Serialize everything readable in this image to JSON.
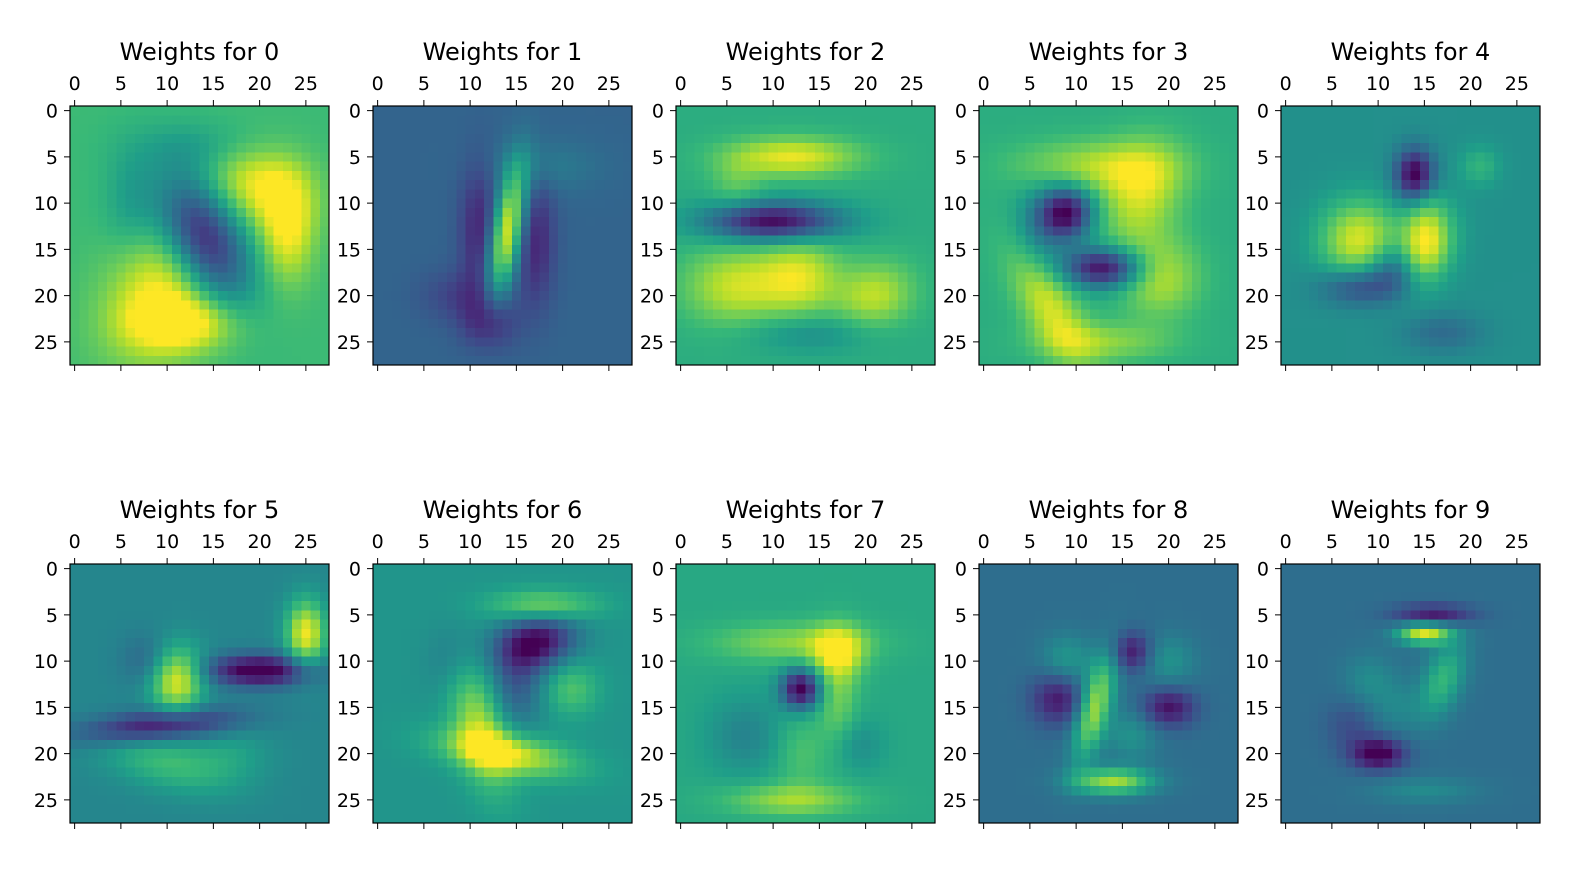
{
  "chart_data": [
    {
      "type": "heatmap",
      "title": "Weights for 0",
      "xticks": [
        "0",
        "5",
        "10",
        "15",
        "20",
        "25"
      ],
      "yticks": [
        "0",
        "5",
        "10",
        "15",
        "20",
        "25"
      ],
      "xlim": [
        0,
        27
      ],
      "ylim": [
        0,
        27
      ],
      "colormap": "viridis",
      "background_level": 0.68,
      "features": [
        {
          "x": 14,
          "y": 14,
          "rx": 3,
          "ry": 5,
          "rot": -25,
          "w": -0.7
        },
        {
          "x": 10,
          "y": 19,
          "rx": 4,
          "ry": 6,
          "rot": 30,
          "w": 0.35
        },
        {
          "x": 20,
          "y": 8,
          "rx": 4,
          "ry": 3,
          "rot": 20,
          "w": 0.3
        },
        {
          "x": 23,
          "y": 13,
          "rx": 2,
          "ry": 4,
          "rot": 0,
          "w": 0.3
        },
        {
          "x": 12,
          "y": 23,
          "rx": 4,
          "ry": 2,
          "rot": 0,
          "w": 0.3
        },
        {
          "x": 14,
          "y": 4,
          "rx": 5,
          "ry": 2,
          "rot": 0,
          "w": -0.12
        },
        {
          "x": 6,
          "y": 10,
          "rx": 2,
          "ry": 4,
          "rot": 0,
          "w": -0.12
        }
      ]
    },
    {
      "type": "heatmap",
      "title": "Weights for 1",
      "xticks": [
        "0",
        "5",
        "10",
        "15",
        "20",
        "25"
      ],
      "yticks": [
        "0",
        "5",
        "10",
        "15",
        "20",
        "25"
      ],
      "xlim": [
        0,
        27
      ],
      "ylim": [
        0,
        27
      ],
      "colormap": "viridis",
      "background_level": 0.32,
      "features": [
        {
          "x": 14,
          "y": 13,
          "rx": 1.2,
          "ry": 5,
          "rot": 10,
          "w": 0.65
        },
        {
          "x": 11,
          "y": 13,
          "rx": 1.5,
          "ry": 5,
          "rot": 0,
          "w": -0.22
        },
        {
          "x": 17,
          "y": 14,
          "rx": 1.5,
          "ry": 5,
          "rot": 0,
          "w": -0.22
        },
        {
          "x": 12,
          "y": 23,
          "rx": 2,
          "ry": 2,
          "rot": 0,
          "w": -0.2
        },
        {
          "x": 9,
          "y": 20,
          "rx": 3,
          "ry": 2,
          "rot": 0,
          "w": -0.12
        },
        {
          "x": 18,
          "y": 6,
          "rx": 4,
          "ry": 2,
          "rot": 0,
          "w": 0.1
        }
      ]
    },
    {
      "type": "heatmap",
      "title": "Weights for 2",
      "xticks": [
        "0",
        "5",
        "10",
        "15",
        "20",
        "25"
      ],
      "yticks": [
        "0",
        "5",
        "10",
        "15",
        "20",
        "25"
      ],
      "xlim": [
        0,
        27
      ],
      "ylim": [
        0,
        27
      ],
      "colormap": "viridis",
      "background_level": 0.62,
      "features": [
        {
          "x": 12,
          "y": 5,
          "rx": 5,
          "ry": 1.5,
          "rot": 0,
          "w": 0.35
        },
        {
          "x": 10,
          "y": 12,
          "rx": 5,
          "ry": 1.5,
          "rot": 0,
          "w": -0.62
        },
        {
          "x": 6,
          "y": 19,
          "rx": 4,
          "ry": 3,
          "rot": 0,
          "w": 0.3
        },
        {
          "x": 13,
          "y": 18,
          "rx": 3,
          "ry": 3,
          "rot": 0,
          "w": 0.3
        },
        {
          "x": 21,
          "y": 20,
          "rx": 3,
          "ry": 2.5,
          "rot": -20,
          "w": 0.28
        },
        {
          "x": 14,
          "y": 24,
          "rx": 5,
          "ry": 1.5,
          "rot": 0,
          "w": -0.15
        },
        {
          "x": 6,
          "y": 8,
          "rx": 2,
          "ry": 2,
          "rot": 0,
          "w": 0.12
        }
      ]
    },
    {
      "type": "heatmap",
      "title": "Weights for 3",
      "xticks": [
        "0",
        "5",
        "10",
        "15",
        "20",
        "25"
      ],
      "yticks": [
        "0",
        "5",
        "10",
        "15",
        "20",
        "25"
      ],
      "xlim": [
        0,
        27
      ],
      "ylim": [
        0,
        27
      ],
      "colormap": "viridis",
      "background_level": 0.62,
      "features": [
        {
          "x": 12,
          "y": 6,
          "rx": 6,
          "ry": 2,
          "rot": 0,
          "w": 0.25
        },
        {
          "x": 17,
          "y": 9,
          "rx": 3,
          "ry": 4,
          "rot": 20,
          "w": 0.3
        },
        {
          "x": 9,
          "y": 11,
          "rx": 2,
          "ry": 2,
          "rot": 0,
          "w": -0.6
        },
        {
          "x": 13,
          "y": 17,
          "rx": 3,
          "ry": 1.5,
          "rot": 0,
          "w": -0.6
        },
        {
          "x": 7,
          "y": 21,
          "rx": 2,
          "ry": 5,
          "rot": -30,
          "w": 0.32
        },
        {
          "x": 19,
          "y": 18,
          "rx": 3,
          "ry": 3,
          "rot": 0,
          "w": 0.28
        },
        {
          "x": 13,
          "y": 25,
          "rx": 5,
          "ry": 1.5,
          "rot": 0,
          "w": 0.2
        },
        {
          "x": 6,
          "y": 13,
          "rx": 2,
          "ry": 3,
          "rot": 0,
          "w": -0.18
        }
      ]
    },
    {
      "type": "heatmap",
      "title": "Weights for 4",
      "xticks": [
        "0",
        "5",
        "10",
        "15",
        "20",
        "25"
      ],
      "yticks": [
        "0",
        "5",
        "10",
        "15",
        "20",
        "25"
      ],
      "xlim": [
        0,
        27
      ],
      "ylim": [
        0,
        27
      ],
      "colormap": "viridis",
      "background_level": 0.5,
      "features": [
        {
          "x": 14,
          "y": 7,
          "rx": 1.5,
          "ry": 2,
          "rot": 0,
          "w": -0.55
        },
        {
          "x": 8,
          "y": 14,
          "rx": 3,
          "ry": 3,
          "rot": 0,
          "w": 0.45
        },
        {
          "x": 15,
          "y": 15,
          "rx": 2,
          "ry": 3,
          "rot": 20,
          "w": 0.45
        },
        {
          "x": 12,
          "y": 17,
          "rx": 2,
          "ry": 2,
          "rot": 0,
          "w": -0.3
        },
        {
          "x": 8,
          "y": 19,
          "rx": 3,
          "ry": 1.5,
          "rot": 0,
          "w": -0.3
        },
        {
          "x": 15,
          "y": 11,
          "rx": 1.5,
          "ry": 3,
          "rot": 0,
          "w": 0.15
        },
        {
          "x": 21,
          "y": 6,
          "rx": 1.5,
          "ry": 1.5,
          "rot": 0,
          "w": 0.15
        },
        {
          "x": 17,
          "y": 24,
          "rx": 3,
          "ry": 1.5,
          "rot": 0,
          "w": -0.15
        }
      ]
    },
    {
      "type": "heatmap",
      "title": "Weights for 5",
      "xticks": [
        "0",
        "5",
        "10",
        "15",
        "20",
        "25"
      ],
      "yticks": [
        "0",
        "5",
        "10",
        "15",
        "20",
        "25"
      ],
      "xlim": [
        0,
        27
      ],
      "ylim": [
        0,
        27
      ],
      "colormap": "viridis",
      "background_level": 0.46,
      "features": [
        {
          "x": 11,
          "y": 12,
          "rx": 2,
          "ry": 2.5,
          "rot": 0,
          "w": 0.52
        },
        {
          "x": 25,
          "y": 7,
          "rx": 1.5,
          "ry": 2.5,
          "rot": 0,
          "w": 0.52
        },
        {
          "x": 20,
          "y": 11,
          "rx": 4,
          "ry": 1.2,
          "rot": 0,
          "w": -0.52
        },
        {
          "x": 9,
          "y": 17,
          "rx": 6,
          "ry": 1.2,
          "rot": -5,
          "w": -0.42
        },
        {
          "x": 10,
          "y": 21,
          "rx": 5,
          "ry": 2,
          "rot": 15,
          "w": 0.22
        },
        {
          "x": 8,
          "y": 10,
          "rx": 2,
          "ry": 2,
          "rot": 0,
          "w": -0.15
        },
        {
          "x": 17,
          "y": 20,
          "rx": 3,
          "ry": 2,
          "rot": 0,
          "w": 0.1
        }
      ]
    },
    {
      "type": "heatmap",
      "title": "Weights for 6",
      "xticks": [
        "0",
        "5",
        "10",
        "15",
        "20",
        "25"
      ],
      "yticks": [
        "0",
        "5",
        "10",
        "15",
        "20",
        "25"
      ],
      "xlim": [
        0,
        27
      ],
      "ylim": [
        0,
        27
      ],
      "colormap": "viridis",
      "background_level": 0.52,
      "features": [
        {
          "x": 18,
          "y": 4,
          "rx": 4,
          "ry": 1.2,
          "rot": 0,
          "w": 0.3
        },
        {
          "x": 17,
          "y": 8,
          "rx": 3,
          "ry": 2,
          "rot": -15,
          "w": -0.52
        },
        {
          "x": 11,
          "y": 17,
          "rx": 2,
          "ry": 5,
          "rot": -15,
          "w": 0.35
        },
        {
          "x": 14,
          "y": 20,
          "rx": 5,
          "ry": 1.5,
          "rot": 10,
          "w": 0.42
        },
        {
          "x": 21,
          "y": 13,
          "rx": 2,
          "ry": 2,
          "rot": 0,
          "w": 0.2
        },
        {
          "x": 15,
          "y": 13,
          "rx": 2,
          "ry": 3,
          "rot": 0,
          "w": -0.22
        },
        {
          "x": 8,
          "y": 10,
          "rx": 2,
          "ry": 3,
          "rot": 0,
          "w": -0.12
        }
      ]
    },
    {
      "type": "heatmap",
      "title": "Weights for 7",
      "xticks": [
        "0",
        "5",
        "10",
        "15",
        "20",
        "25"
      ],
      "yticks": [
        "0",
        "5",
        "10",
        "15",
        "20",
        "25"
      ],
      "xlim": [
        0,
        27
      ],
      "ylim": [
        0,
        27
      ],
      "colormap": "viridis",
      "background_level": 0.6,
      "features": [
        {
          "x": 12,
          "y": 8,
          "rx": 6,
          "ry": 1.5,
          "rot": 0,
          "w": 0.22
        },
        {
          "x": 17,
          "y": 9,
          "rx": 2,
          "ry": 2,
          "rot": 0,
          "w": 0.32
        },
        {
          "x": 13,
          "y": 13,
          "rx": 1.5,
          "ry": 1.5,
          "rot": 0,
          "w": -0.62
        },
        {
          "x": 17,
          "y": 14,
          "rx": 1.5,
          "ry": 4,
          "rot": 0,
          "w": 0.18
        },
        {
          "x": 12,
          "y": 25,
          "rx": 5,
          "ry": 1.2,
          "rot": 0,
          "w": 0.25
        },
        {
          "x": 7,
          "y": 18,
          "rx": 3,
          "ry": 3,
          "rot": 0,
          "w": -0.15
        },
        {
          "x": 19,
          "y": 19,
          "rx": 2,
          "ry": 2,
          "rot": 0,
          "w": -0.12
        },
        {
          "x": 13,
          "y": 20,
          "rx": 2,
          "ry": 3,
          "rot": 0,
          "w": 0.12
        }
      ]
    },
    {
      "type": "heatmap",
      "title": "Weights for 8",
      "xticks": [
        "0",
        "5",
        "10",
        "15",
        "20",
        "25"
      ],
      "yticks": [
        "0",
        "5",
        "10",
        "15",
        "20",
        "25"
      ],
      "xlim": [
        0,
        27
      ],
      "ylim": [
        0,
        27
      ],
      "colormap": "viridis",
      "background_level": 0.36,
      "features": [
        {
          "x": 12,
          "y": 15,
          "rx": 1.2,
          "ry": 4,
          "rot": 15,
          "w": 0.5
        },
        {
          "x": 14,
          "y": 23,
          "rx": 3,
          "ry": 1,
          "rot": 0,
          "w": 0.5
        },
        {
          "x": 16,
          "y": 9,
          "rx": 1.5,
          "ry": 1.5,
          "rot": 0,
          "w": -0.3
        },
        {
          "x": 8,
          "y": 14,
          "rx": 2,
          "ry": 2,
          "rot": 0,
          "w": -0.3
        },
        {
          "x": 20,
          "y": 15,
          "rx": 2,
          "ry": 1.5,
          "rot": 0,
          "w": -0.32
        },
        {
          "x": 9,
          "y": 10,
          "rx": 2,
          "ry": 2,
          "rot": 0,
          "w": 0.18
        },
        {
          "x": 20,
          "y": 10,
          "rx": 2,
          "ry": 2,
          "rot": 0,
          "w": 0.15
        },
        {
          "x": 16,
          "y": 18,
          "rx": 2,
          "ry": 2,
          "rot": 0,
          "w": 0.15
        }
      ]
    },
    {
      "type": "heatmap",
      "title": "Weights for 9",
      "xticks": [
        "0",
        "5",
        "10",
        "15",
        "20",
        "25"
      ],
      "yticks": [
        "0",
        "5",
        "10",
        "15",
        "20",
        "25"
      ],
      "xlim": [
        0,
        27
      ],
      "ylim": [
        0,
        27
      ],
      "colormap": "viridis",
      "background_level": 0.36,
      "features": [
        {
          "x": 15,
          "y": 7,
          "rx": 2,
          "ry": 0.8,
          "rot": 0,
          "w": 0.6
        },
        {
          "x": 16,
          "y": 5,
          "rx": 3,
          "ry": 0.8,
          "rot": 0,
          "w": -0.3
        },
        {
          "x": 17,
          "y": 12,
          "rx": 1.5,
          "ry": 3,
          "rot": 20,
          "w": 0.3
        },
        {
          "x": 10,
          "y": 20,
          "rx": 2,
          "ry": 1.2,
          "rot": 0,
          "w": -0.4
        },
        {
          "x": 9,
          "y": 12,
          "rx": 2,
          "ry": 2,
          "rot": 0,
          "w": 0.12
        },
        {
          "x": 12,
          "y": 15,
          "rx": 2,
          "ry": 2,
          "rot": 0,
          "w": 0.1
        },
        {
          "x": 15,
          "y": 24,
          "rx": 4,
          "ry": 1,
          "rot": 0,
          "w": 0.12
        },
        {
          "x": 7,
          "y": 17,
          "rx": 2,
          "ry": 2,
          "rot": 0,
          "w": -0.12
        }
      ]
    }
  ]
}
